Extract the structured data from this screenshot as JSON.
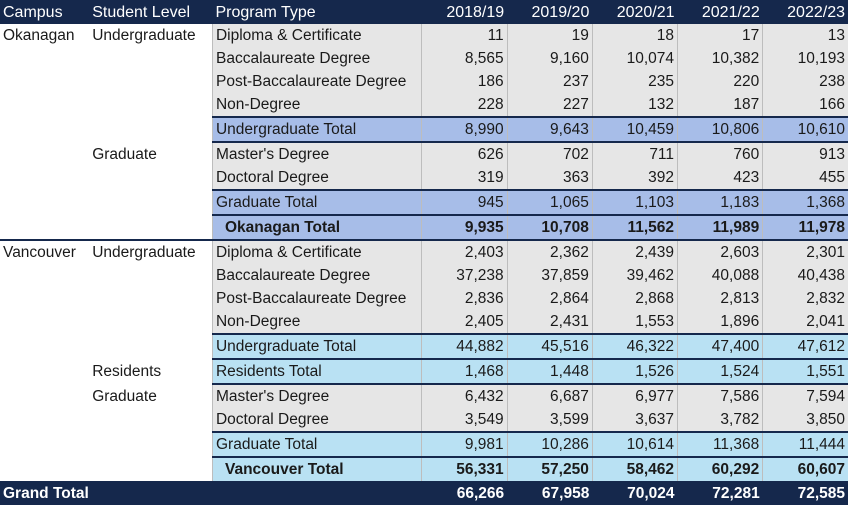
{
  "header": {
    "campus": "Campus",
    "student_level": "Student Level",
    "program_type": "Program Type",
    "years": [
      "2018/19",
      "2019/20",
      "2020/21",
      "2021/22",
      "2022/23"
    ]
  },
  "rows": [
    {
      "campus": "Okanagan",
      "level": "Undergraduate",
      "program": "Diploma & Certificate",
      "values": [
        "11",
        "19",
        "18",
        "17",
        "13"
      ]
    },
    {
      "campus": "",
      "level": "",
      "program": "Baccalaureate Degree",
      "values": [
        "8,565",
        "9,160",
        "10,074",
        "10,382",
        "10,193"
      ]
    },
    {
      "campus": "",
      "level": "",
      "program": "Post-Baccalaureate Degree",
      "values": [
        "186",
        "237",
        "235",
        "220",
        "238"
      ]
    },
    {
      "campus": "",
      "level": "",
      "program": "Non-Degree",
      "values": [
        "228",
        "227",
        "132",
        "187",
        "166"
      ]
    },
    {
      "campus": "",
      "level": "",
      "program": "Undergraduate Total",
      "values": [
        "8,990",
        "9,643",
        "10,459",
        "10,806",
        "10,610"
      ]
    },
    {
      "campus": "",
      "level": "Graduate",
      "program": "Master's Degree",
      "values": [
        "626",
        "702",
        "711",
        "760",
        "913"
      ]
    },
    {
      "campus": "",
      "level": "",
      "program": "Doctoral Degree",
      "values": [
        "319",
        "363",
        "392",
        "423",
        "455"
      ]
    },
    {
      "campus": "",
      "level": "",
      "program": "Graduate Total",
      "values": [
        "945",
        "1,065",
        "1,103",
        "1,183",
        "1,368"
      ]
    },
    {
      "campus": "",
      "level": "",
      "program": "Okanagan Total",
      "values": [
        "9,935",
        "10,708",
        "11,562",
        "11,989",
        "11,978"
      ]
    },
    {
      "campus": "Vancouver",
      "level": "Undergraduate",
      "program": "Diploma & Certificate",
      "values": [
        "2,403",
        "2,362",
        "2,439",
        "2,603",
        "2,301"
      ]
    },
    {
      "campus": "",
      "level": "",
      "program": "Baccalaureate Degree",
      "values": [
        "37,238",
        "37,859",
        "39,462",
        "40,088",
        "40,438"
      ]
    },
    {
      "campus": "",
      "level": "",
      "program": "Post-Baccalaureate Degree",
      "values": [
        "2,836",
        "2,864",
        "2,868",
        "2,813",
        "2,832"
      ]
    },
    {
      "campus": "",
      "level": "",
      "program": "Non-Degree",
      "values": [
        "2,405",
        "2,431",
        "1,553",
        "1,896",
        "2,041"
      ]
    },
    {
      "campus": "",
      "level": "",
      "program": "Undergraduate Total",
      "values": [
        "44,882",
        "45,516",
        "46,322",
        "47,400",
        "47,612"
      ]
    },
    {
      "campus": "",
      "level": "Residents",
      "program": "Residents Total",
      "values": [
        "1,468",
        "1,448",
        "1,526",
        "1,524",
        "1,551"
      ]
    },
    {
      "campus": "",
      "level": "Graduate",
      "program": "Master's Degree",
      "values": [
        "6,432",
        "6,687",
        "6,977",
        "7,586",
        "7,594"
      ]
    },
    {
      "campus": "",
      "level": "",
      "program": "Doctoral Degree",
      "values": [
        "3,549",
        "3,599",
        "3,637",
        "3,782",
        "3,850"
      ]
    },
    {
      "campus": "",
      "level": "",
      "program": "Graduate Total",
      "values": [
        "9,981",
        "10,286",
        "10,614",
        "11,368",
        "11,444"
      ]
    },
    {
      "campus": "",
      "level": "",
      "program": "Vancouver Total",
      "values": [
        "56,331",
        "57,250",
        "58,462",
        "60,292",
        "60,607"
      ]
    }
  ],
  "grand_total": {
    "label": "Grand Total",
    "values": [
      "66,266",
      "67,958",
      "70,024",
      "72,281",
      "72,585"
    ]
  },
  "colors": {
    "header_bg": "#15284c",
    "okanagan_total_bg": "#a7bde8",
    "vancouver_total_bg": "#b9e1f3",
    "detail_bg": "#e6e6e6"
  }
}
